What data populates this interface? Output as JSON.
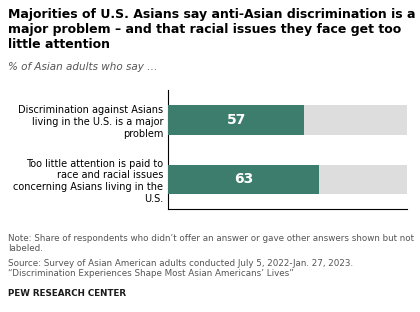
{
  "chart_data": {
    "type": "bar",
    "orientation": "horizontal",
    "title": "Majorities of U.S. Asians say anti-Asian discrimination is a major problem – and that racial issues they face get too little attention",
    "subtitle": "% of Asian adults who say …",
    "categories": [
      "Discrimination against Asians living in the U.S. is a major problem",
      "Too little attention is paid to race and racial issues concerning Asians living in the U.S."
    ],
    "values": [
      57,
      63
    ],
    "color": "#3d7d6e",
    "xlim": [
      0,
      100
    ],
    "data_labels": true,
    "tick_labels": "y",
    "grid": false,
    "annotations": [
      "Note: Share of respondents who didn’t offer an answer or gave other answers shown but not labeled.",
      "Source: Survey of Asian American adults conducted July 5, 2022-Jan. 27, 2023. “Discrimination Experiences Shape Most Asian Americans’ Lives”",
      "PEW RESEARCH CENTER"
    ]
  }
}
